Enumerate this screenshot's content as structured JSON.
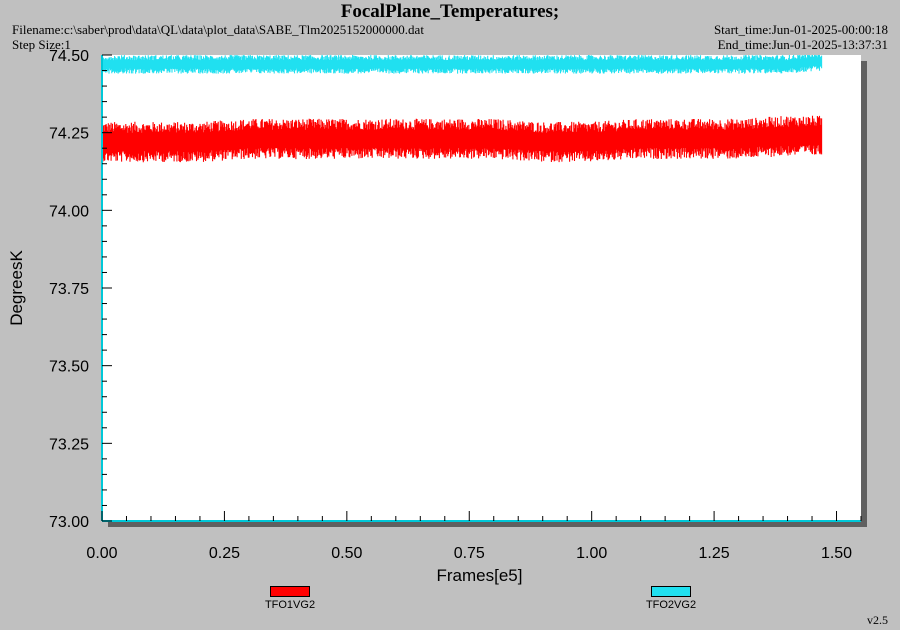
{
  "header": {
    "title": "FocalPlane_Temperatures;",
    "filename": "Filename:c:\\saber\\prod\\data\\QL\\data\\plot_data\\SABE_Tlm2025152000000.dat",
    "step_size": "Step Size:1",
    "start_time": "Start_time:Jun-01-2025-00:00:18",
    "end_time": "End_time:Jun-01-2025-13:37:31"
  },
  "footer": {
    "version": "v2.5"
  },
  "colors": {
    "background": "#c0c0c0",
    "plot_area": "#ffffff",
    "axis": "#00c8d8",
    "shadow": "#606060"
  },
  "chart_data": {
    "type": "line",
    "title": "FocalPlane_Temperatures;",
    "xlabel": "Frames[e5]",
    "ylabel": "DegreesK",
    "xlim": [
      0.0,
      1.55
    ],
    "ylim": [
      73.0,
      74.5
    ],
    "xticks": [
      "0.00",
      "0.25",
      "0.50",
      "0.75",
      "1.00",
      "1.25",
      "1.50"
    ],
    "yticks": [
      "73.00",
      "73.25",
      "73.50",
      "73.75",
      "74.00",
      "74.25",
      "74.50"
    ],
    "grid": false,
    "legend_position": "bottom",
    "series": [
      {
        "name": "TFO1VG2",
        "color": "#ff0000",
        "x_range": [
          0.0,
          1.47
        ],
        "mean": 74.23,
        "min": 74.17,
        "max": 74.3,
        "x": [
          0.0,
          0.1,
          0.2,
          0.3,
          0.4,
          0.5,
          0.6,
          0.7,
          0.8,
          0.9,
          1.0,
          1.1,
          1.2,
          1.3,
          1.4,
          1.47
        ],
        "values": [
          74.22,
          74.22,
          74.22,
          74.23,
          74.23,
          74.23,
          74.23,
          74.23,
          74.23,
          74.22,
          74.22,
          74.23,
          74.23,
          74.23,
          74.24,
          74.24
        ]
      },
      {
        "name": "TFO2VG2",
        "color": "#20e0f0",
        "x_range": [
          0.0,
          1.47
        ],
        "mean": 74.47,
        "min": 74.44,
        "max": 74.5,
        "x": [
          0.0,
          0.2,
          0.4,
          0.6,
          0.8,
          1.0,
          1.2,
          1.4,
          1.47
        ],
        "values": [
          74.47,
          74.47,
          74.47,
          74.47,
          74.47,
          74.47,
          74.47,
          74.47,
          74.48
        ]
      }
    ]
  }
}
